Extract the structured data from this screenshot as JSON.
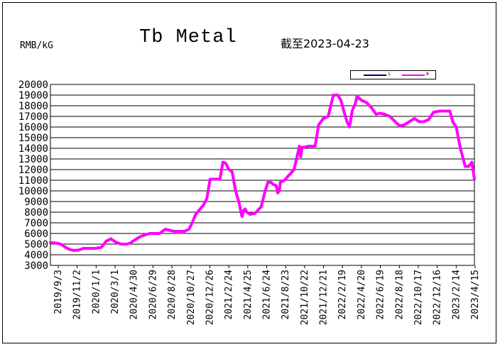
{
  "chart_data": {
    "type": "line",
    "title": "Tb Metal",
    "subtitle": "截至2023-04-23",
    "ylabel": "RMB/kG",
    "ylim": [
      3000,
      20000
    ],
    "ytick_step": 1000,
    "grid": true,
    "legend": "top-right",
    "x_tick_labels": [
      "2019/9/3",
      "2019/11/2",
      "2020/1/1",
      "2020/3/1",
      "2020/4/30",
      "2020/6/29",
      "2020/8/28",
      "2020/10/27",
      "2020/12/26",
      "2021/2/24",
      "2021/4/25",
      "2021/6/24",
      "2021/8/23",
      "2021/10/22",
      "2021/12/21",
      "2022/2/19",
      "2022/4/20",
      "2022/6/19",
      "2022/8/18",
      "2022/10/17",
      "2022/12/16",
      "2023/2/14",
      "2023/4/15"
    ],
    "x": [
      "2019-09-03",
      "2019-09-20",
      "2019-10-05",
      "2019-10-20",
      "2019-11-02",
      "2019-11-15",
      "2019-12-01",
      "2019-12-15",
      "2020-01-01",
      "2020-01-20",
      "2020-02-10",
      "2020-02-25",
      "2020-03-01",
      "2020-03-10",
      "2020-03-25",
      "2020-04-10",
      "2020-04-30",
      "2020-05-10",
      "2020-05-25",
      "2020-06-10",
      "2020-06-29",
      "2020-07-10",
      "2020-07-25",
      "2020-08-10",
      "2020-08-28",
      "2020-09-10",
      "2020-09-25",
      "2020-10-10",
      "2020-10-27",
      "2020-11-10",
      "2020-11-20",
      "2020-12-01",
      "2020-12-15",
      "2020-12-26",
      "2021-01-05",
      "2021-01-15",
      "2021-01-25",
      "2021-02-05",
      "2021-02-15",
      "2021-02-24",
      "2021-03-05",
      "2021-03-15",
      "2021-03-25",
      "2021-04-05",
      "2021-04-15",
      "2021-04-25",
      "2021-05-01",
      "2021-05-05",
      "2021-05-10",
      "2021-05-20",
      "2021-06-05",
      "2021-06-24",
      "2021-07-05",
      "2021-07-15",
      "2021-07-25",
      "2021-08-01",
      "2021-08-10",
      "2021-08-15",
      "2021-08-20",
      "2021-08-23",
      "2021-09-05",
      "2021-09-20",
      "2021-10-05",
      "2021-10-22",
      "2021-10-26",
      "2021-10-30",
      "2021-11-05",
      "2021-11-20",
      "2021-12-10",
      "2021-12-21",
      "2022-01-05",
      "2022-01-20",
      "2022-02-05",
      "2022-02-19",
      "2022-03-01",
      "2022-03-10",
      "2022-03-20",
      "2022-03-28",
      "2022-04-05",
      "2022-04-15",
      "2022-04-20",
      "2022-05-05",
      "2022-05-20",
      "2022-06-05",
      "2022-06-19",
      "2022-07-01",
      "2022-07-15",
      "2022-08-01",
      "2022-08-18",
      "2022-09-01",
      "2022-09-15",
      "2022-10-01",
      "2022-10-17",
      "2022-11-01",
      "2022-11-15",
      "2022-12-01",
      "2022-12-16",
      "2023-01-05",
      "2023-01-25",
      "2023-02-05",
      "2023-02-14",
      "2023-02-25",
      "2023-03-10",
      "2023-03-25",
      "2023-04-05",
      "2023-04-15",
      "2023-04-23"
    ],
    "series": [
      {
        "name": "1",
        "color": "#00007f",
        "values": [
          5150,
          5100,
          5000,
          4700,
          4500,
          4400,
          4450,
          4600,
          4600,
          4600,
          4700,
          5300,
          5350,
          5500,
          5200,
          5000,
          5000,
          5100,
          5400,
          5700,
          5900,
          6000,
          6000,
          6000,
          6400,
          6300,
          6200,
          6200,
          6200,
          6400,
          7000,
          7800,
          8300,
          8700,
          9300,
          11100,
          11100,
          11100,
          11100,
          12700,
          12600,
          12000,
          11800,
          10000,
          9000,
          7600,
          8200,
          8300,
          8000,
          7800,
          7900,
          8500,
          9800,
          10800,
          10800,
          10600,
          10500,
          9800,
          10000,
          10800,
          11000,
          11500,
          12000,
          14200,
          13200,
          14100,
          14100,
          14200,
          14200,
          16200,
          16800,
          17000,
          19000,
          19000,
          18500,
          17500,
          16500,
          16000,
          17500,
          18200,
          18800,
          18500,
          18300,
          17800,
          17200,
          17300,
          17200,
          17000,
          16500,
          16100,
          16200,
          16500,
          16800,
          16500,
          16500,
          16700,
          17400,
          17500,
          17500,
          17500,
          16500,
          16000,
          14000,
          12300,
          12300,
          12700,
          11100
        ]
      },
      {
        "name": "8",
        "color": "#ff00ff",
        "values": [
          5150,
          5100,
          5000,
          4700,
          4500,
          4400,
          4450,
          4600,
          4600,
          4600,
          4700,
          5300,
          5350,
          5500,
          5200,
          5000,
          5000,
          5100,
          5400,
          5700,
          5900,
          6000,
          6000,
          6000,
          6400,
          6300,
          6200,
          6200,
          6200,
          6400,
          7000,
          7800,
          8300,
          8700,
          9300,
          11100,
          11100,
          11100,
          11100,
          12700,
          12600,
          12000,
          11800,
          10000,
          9000,
          7600,
          8200,
          8300,
          8000,
          7800,
          7900,
          8500,
          9800,
          10800,
          10800,
          10600,
          10500,
          9800,
          10000,
          10800,
          11000,
          11500,
          12000,
          14200,
          13200,
          14100,
          14100,
          14200,
          14200,
          16200,
          16800,
          17000,
          19000,
          19000,
          18500,
          17500,
          16500,
          16000,
          17500,
          18200,
          18900,
          18500,
          18300,
          17800,
          17200,
          17300,
          17200,
          17000,
          16500,
          16100,
          16200,
          16500,
          16800,
          16500,
          16500,
          16700,
          17400,
          17500,
          17500,
          17500,
          16500,
          16000,
          14000,
          12300,
          12300,
          12700,
          11100
        ]
      }
    ]
  }
}
